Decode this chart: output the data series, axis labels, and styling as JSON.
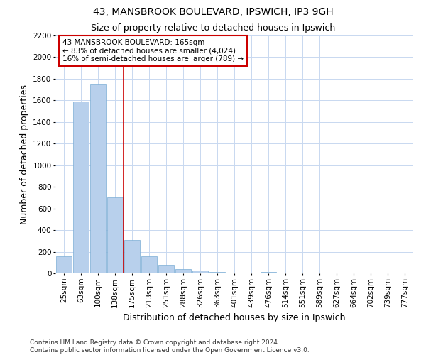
{
  "title1": "43, MANSBROOK BOULEVARD, IPSWICH, IP3 9GH",
  "title2": "Size of property relative to detached houses in Ipswich",
  "xlabel": "Distribution of detached houses by size in Ipswich",
  "ylabel": "Number of detached properties",
  "footnote": "Contains HM Land Registry data © Crown copyright and database right 2024.\nContains public sector information licensed under the Open Government Licence v3.0.",
  "categories": [
    "25sqm",
    "63sqm",
    "100sqm",
    "138sqm",
    "175sqm",
    "213sqm",
    "251sqm",
    "288sqm",
    "326sqm",
    "363sqm",
    "401sqm",
    "439sqm",
    "476sqm",
    "514sqm",
    "551sqm",
    "589sqm",
    "627sqm",
    "664sqm",
    "702sqm",
    "739sqm",
    "777sqm"
  ],
  "values": [
    160,
    1590,
    1750,
    700,
    310,
    155,
    80,
    42,
    25,
    15,
    8,
    3,
    15,
    0,
    0,
    0,
    0,
    0,
    0,
    0,
    0
  ],
  "bar_color": "#b8d0ec",
  "bar_edge_color": "#7aadd4",
  "vline_pos": 3.5,
  "vline_color": "#cc0000",
  "annotation_text": "43 MANSBROOK BOULEVARD: 165sqm\n← 83% of detached houses are smaller (4,024)\n16% of semi-detached houses are larger (789) →",
  "annotation_box_color": "#ffffff",
  "annotation_box_edge": "#cc0000",
  "ylim": [
    0,
    2200
  ],
  "yticks": [
    0,
    200,
    400,
    600,
    800,
    1000,
    1200,
    1400,
    1600,
    1800,
    2000,
    2200
  ],
  "bg_color": "#ffffff",
  "grid_color": "#c8d8f0",
  "title1_fontsize": 10,
  "title2_fontsize": 9,
  "axis_label_fontsize": 9,
  "tick_fontsize": 7.5,
  "footnote_fontsize": 6.5
}
